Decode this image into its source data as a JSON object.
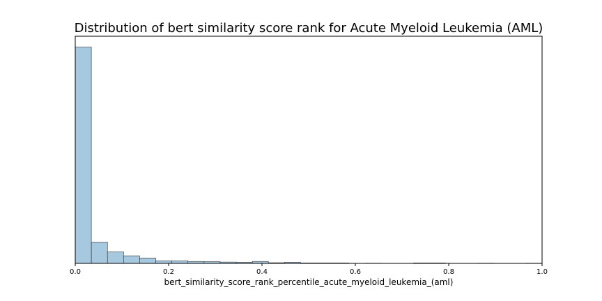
{
  "chart_data": {
    "type": "bar",
    "title": "Distribution of bert similarity score rank for Acute Myeloid Leukemia (AML)",
    "xlabel": "bert_similarity_score_rank_percentile_acute_myeloid_leukemia_(aml)",
    "ylabel": "",
    "xlim": [
      0.0,
      1.0
    ],
    "ylim": [
      0,
      1.05
    ],
    "x_ticks": [
      "0.0",
      "0.2",
      "0.4",
      "0.6",
      "0.8",
      "1.0"
    ],
    "y_ticks_visible": false,
    "grid": false,
    "bar_color": "#a6c9e0",
    "edge_color": "#2b2b2b",
    "bin_width": 0.0345,
    "bin_starts": [
      0.0,
      0.0345,
      0.069,
      0.1034,
      0.1379,
      0.1724,
      0.2069,
      0.2414,
      0.2759,
      0.3103,
      0.3448,
      0.3793,
      0.4138,
      0.4483,
      0.4828,
      0.5172,
      0.5517,
      0.5862,
      0.6207,
      0.6552,
      0.6897,
      0.7241,
      0.7586,
      0.7931,
      0.8276,
      0.8621,
      0.8966,
      0.931,
      0.9655
    ],
    "values": [
      1.0,
      0.098,
      0.053,
      0.035,
      0.025,
      0.012,
      0.012,
      0.009,
      0.008,
      0.006,
      0.005,
      0.009,
      0.003,
      0.005,
      0.002,
      0.002,
      0.002,
      0.0,
      0.001,
      0.0,
      0.0,
      0.002,
      0.002,
      0.0,
      0.0,
      0.001,
      0.0,
      0.0,
      0.001
    ]
  }
}
